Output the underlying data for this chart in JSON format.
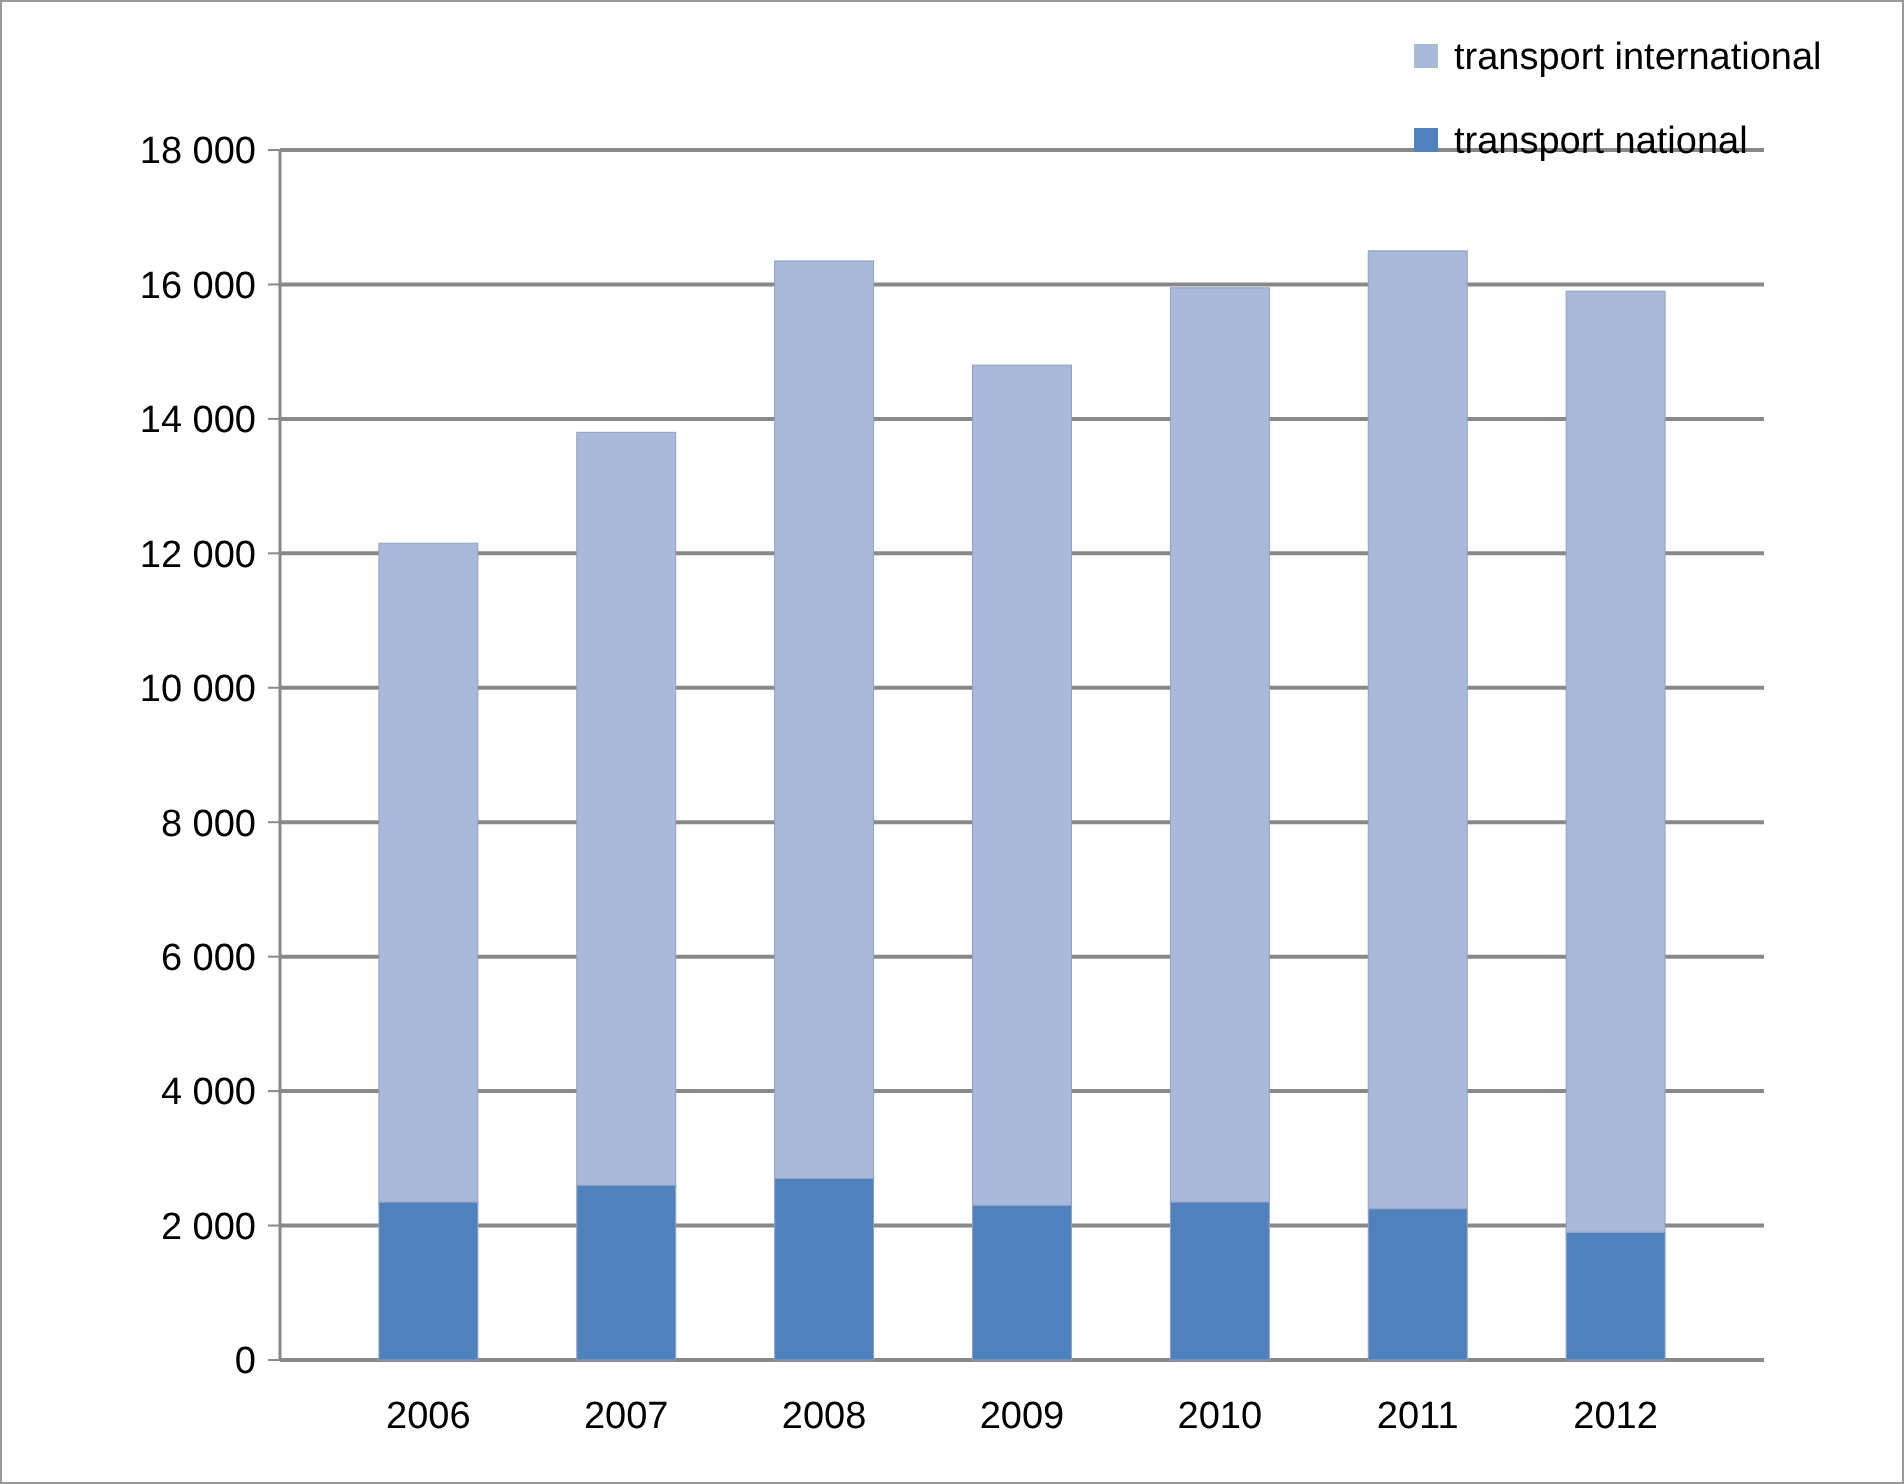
{
  "chart_data": {
    "type": "bar",
    "stacked": true,
    "categories": [
      "2006",
      "2007",
      "2008",
      "2009",
      "2010",
      "2011",
      "2012"
    ],
    "series": [
      {
        "name": "transport national",
        "color": "#4f81bd",
        "values": [
          2350,
          2600,
          2700,
          2300,
          2350,
          2250,
          1900
        ]
      },
      {
        "name": "transport international",
        "color": "#a9b9d9",
        "values": [
          9800,
          11200,
          13650,
          12500,
          13600,
          14250,
          14000
        ]
      }
    ],
    "ylim": [
      0,
      18000
    ],
    "yticks": [
      0,
      {
        "value": 2000,
        "label": "2 000"
      },
      {
        "value": 4000,
        "label": "4 000"
      },
      {
        "value": 6000,
        "label": "6 000"
      },
      {
        "value": 8000,
        "label": "8 000"
      },
      {
        "value": 10000,
        "label": "10 000"
      },
      {
        "value": 12000,
        "label": "12 000"
      },
      {
        "value": 14000,
        "label": "14 000"
      },
      {
        "value": 16000,
        "label": "16 000"
      },
      {
        "value": 18000,
        "label": "18 000"
      }
    ],
    "grid": "y",
    "legend": "top right"
  }
}
